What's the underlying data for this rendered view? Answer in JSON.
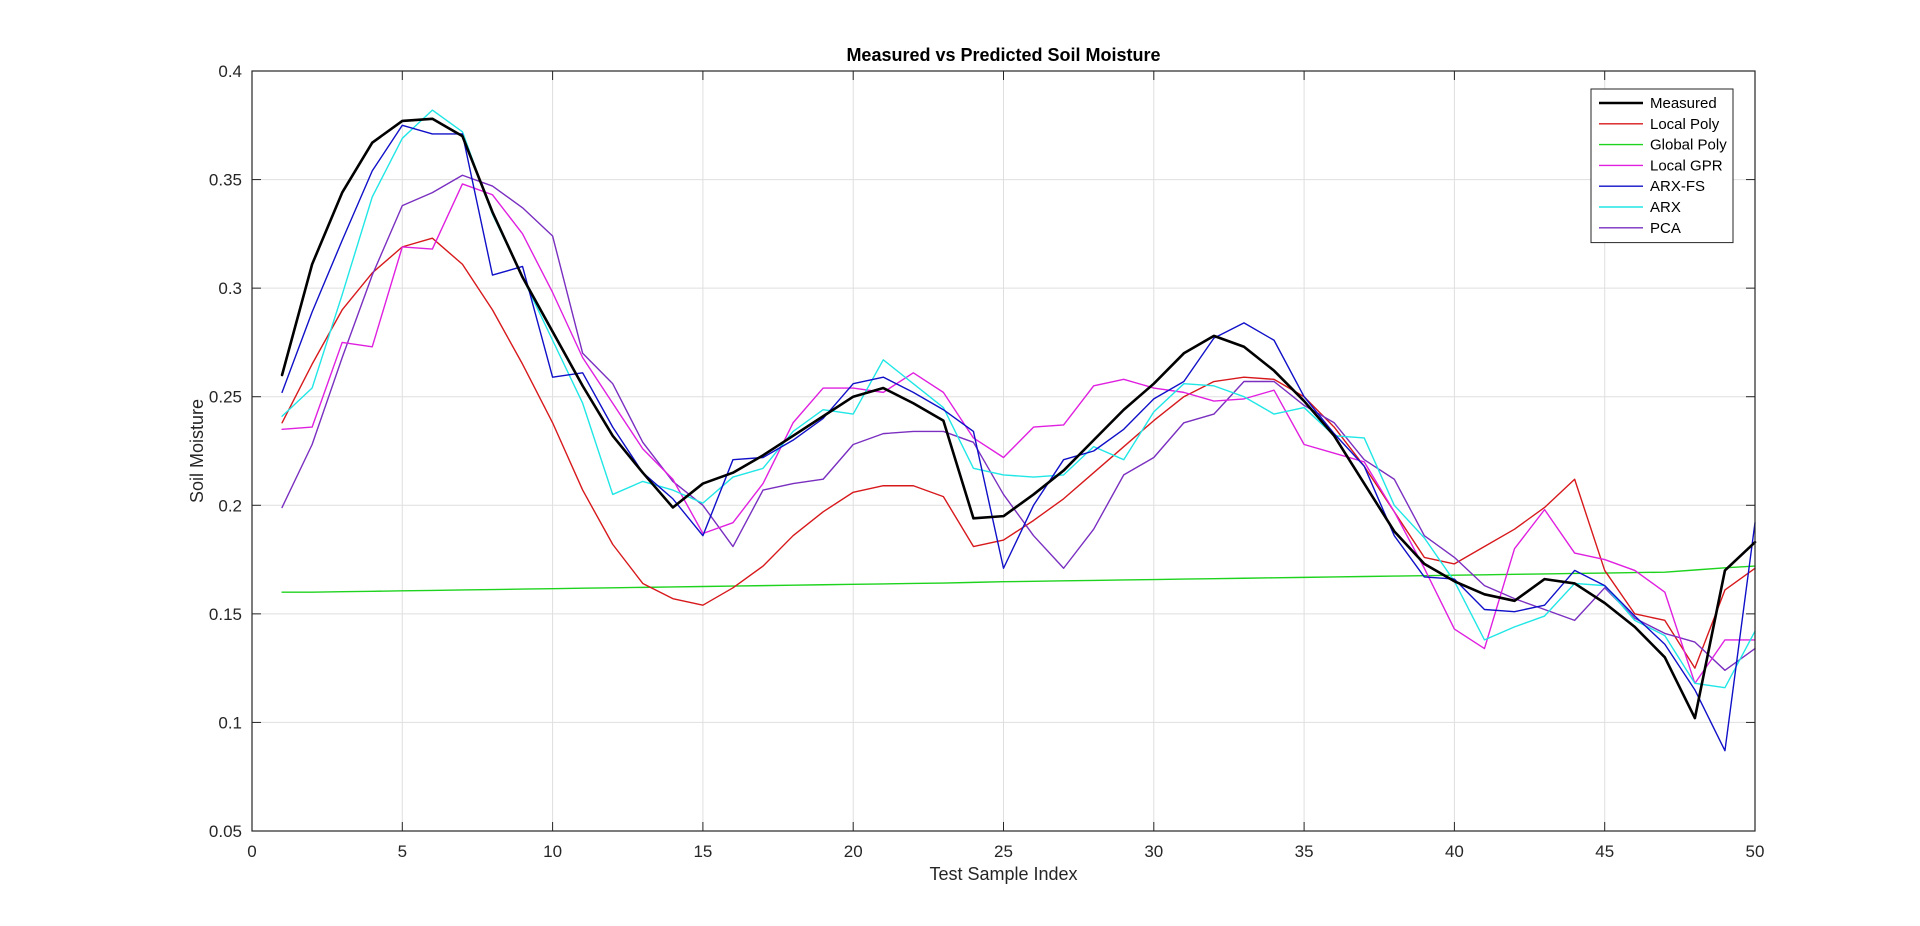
{
  "chart_data": {
    "type": "line",
    "title": "Measured vs Predicted Soil Moisture",
    "xlabel": "Test Sample Index",
    "ylabel": "Soil Moisture",
    "xlim": [
      0,
      50
    ],
    "ylim": [
      0.05,
      0.4
    ],
    "xticks": [
      0,
      5,
      10,
      15,
      20,
      25,
      30,
      35,
      40,
      45,
      50
    ],
    "yticks": [
      0.05,
      0.1,
      0.15,
      0.2,
      0.25,
      0.3,
      0.35,
      0.4
    ],
    "xtick_labels": [
      "0",
      "5",
      "10",
      "15",
      "20",
      "25",
      "30",
      "35",
      "40",
      "45",
      "50"
    ],
    "ytick_labels": [
      "0.05",
      "0.1",
      "0.15",
      "0.2",
      "0.25",
      "0.3",
      "0.35",
      "0.4"
    ],
    "grid": true,
    "legend_position": "top-right",
    "x": [
      1,
      2,
      3,
      4,
      5,
      6,
      7,
      8,
      9,
      10,
      11,
      12,
      13,
      14,
      15,
      16,
      17,
      18,
      19,
      20,
      21,
      22,
      23,
      24,
      25,
      26,
      27,
      28,
      29,
      30,
      31,
      32,
      33,
      34,
      35,
      36,
      37,
      38,
      39,
      40,
      41,
      42,
      43,
      44,
      45,
      46,
      47,
      48,
      49,
      50
    ],
    "series": [
      {
        "name": "Measured",
        "color": "#000000",
        "width": 2.6,
        "values": [
          0.26,
          0.311,
          0.344,
          0.367,
          0.377,
          0.378,
          0.37,
          0.335,
          0.305,
          0.28,
          0.255,
          0.232,
          0.215,
          0.199,
          0.21,
          0.215,
          0.223,
          0.232,
          0.241,
          0.25,
          0.254,
          0.247,
          0.239,
          0.194,
          0.195,
          0.205,
          0.216,
          0.23,
          0.244,
          0.256,
          0.27,
          0.278,
          0.273,
          0.262,
          0.248,
          0.232,
          0.21,
          0.188,
          0.173,
          0.165,
          0.159,
          0.156,
          0.166,
          0.164,
          0.155,
          0.144,
          0.13,
          0.102,
          0.17,
          0.183
        ]
      },
      {
        "name": "Local Poly",
        "color": "#d7191c",
        "width": 1.4,
        "values": [
          0.238,
          0.265,
          0.29,
          0.307,
          0.319,
          0.323,
          0.311,
          0.29,
          0.265,
          0.238,
          0.207,
          0.182,
          0.164,
          0.157,
          0.154,
          0.162,
          0.172,
          0.186,
          0.197,
          0.206,
          0.209,
          0.209,
          0.204,
          0.181,
          0.184,
          0.193,
          0.203,
          0.215,
          0.227,
          0.239,
          0.25,
          0.257,
          0.259,
          0.258,
          0.25,
          0.236,
          0.218,
          0.197,
          0.176,
          0.173,
          0.181,
          0.189,
          0.199,
          0.212,
          0.17,
          0.15,
          0.147,
          0.125,
          0.161,
          0.171
        ]
      },
      {
        "name": "Global Poly",
        "color": "#1ed31e",
        "width": 1.4,
        "values": [
          0.16,
          0.16,
          0.1602,
          0.1604,
          0.1606,
          0.1608,
          0.161,
          0.1612,
          0.1614,
          0.1616,
          0.1618,
          0.162,
          0.1622,
          0.1624,
          0.1626,
          0.1628,
          0.163,
          0.1632,
          0.1634,
          0.1636,
          0.1638,
          0.164,
          0.1642,
          0.1645,
          0.1648,
          0.165,
          0.1652,
          0.1654,
          0.1656,
          0.1658,
          0.166,
          0.1662,
          0.1664,
          0.1666,
          0.1668,
          0.167,
          0.1672,
          0.1674,
          0.1676,
          0.1678,
          0.168,
          0.1682,
          0.1684,
          0.1686,
          0.1688,
          0.169,
          0.1692,
          0.1702,
          0.1712,
          0.172
        ]
      },
      {
        "name": "Local GPR",
        "color": "#e020e0",
        "width": 1.4,
        "values": [
          0.235,
          0.236,
          0.275,
          0.273,
          0.319,
          0.318,
          0.348,
          0.343,
          0.325,
          0.298,
          0.268,
          0.247,
          0.226,
          0.212,
          0.187,
          0.192,
          0.21,
          0.238,
          0.254,
          0.254,
          0.252,
          0.261,
          0.252,
          0.231,
          0.222,
          0.236,
          0.237,
          0.255,
          0.258,
          0.254,
          0.252,
          0.248,
          0.249,
          0.253,
          0.228,
          0.224,
          0.22,
          0.197,
          0.171,
          0.143,
          0.134,
          0.18,
          0.198,
          0.178,
          0.175,
          0.17,
          0.16,
          0.118,
          0.138,
          0.138
        ]
      },
      {
        "name": "ARX-FS",
        "color": "#1010c8",
        "width": 1.4,
        "values": [
          0.252,
          0.289,
          0.322,
          0.354,
          0.375,
          0.371,
          0.371,
          0.306,
          0.31,
          0.259,
          0.261,
          0.236,
          0.215,
          0.203,
          0.186,
          0.221,
          0.222,
          0.23,
          0.24,
          0.256,
          0.259,
          0.252,
          0.244,
          0.234,
          0.171,
          0.2,
          0.221,
          0.225,
          0.235,
          0.249,
          0.257,
          0.277,
          0.284,
          0.276,
          0.25,
          0.233,
          0.218,
          0.186,
          0.167,
          0.166,
          0.152,
          0.151,
          0.154,
          0.17,
          0.163,
          0.149,
          0.136,
          0.115,
          0.087,
          0.192
        ]
      },
      {
        "name": "ARX",
        "color": "#20e6e6",
        "width": 1.4,
        "values": [
          0.241,
          0.254,
          0.297,
          0.342,
          0.369,
          0.382,
          0.372,
          0.334,
          0.305,
          0.276,
          0.247,
          0.205,
          0.211,
          0.207,
          0.201,
          0.213,
          0.217,
          0.234,
          0.244,
          0.242,
          0.267,
          0.256,
          0.245,
          0.217,
          0.214,
          0.213,
          0.214,
          0.227,
          0.221,
          0.243,
          0.256,
          0.255,
          0.25,
          0.242,
          0.245,
          0.232,
          0.231,
          0.2,
          0.185,
          0.165,
          0.138,
          0.144,
          0.149,
          0.164,
          0.163,
          0.147,
          0.14,
          0.118,
          0.116,
          0.142
        ]
      },
      {
        "name": "PCA",
        "color": "#7a2fc0",
        "width": 1.4,
        "values": [
          0.199,
          0.228,
          0.268,
          0.306,
          0.338,
          0.344,
          0.352,
          0.347,
          0.337,
          0.324,
          0.27,
          0.256,
          0.229,
          0.211,
          0.2,
          0.181,
          0.207,
          0.21,
          0.212,
          0.228,
          0.233,
          0.234,
          0.234,
          0.229,
          0.205,
          0.186,
          0.171,
          0.189,
          0.214,
          0.222,
          0.238,
          0.242,
          0.257,
          0.257,
          0.246,
          0.238,
          0.221,
          0.212,
          0.186,
          0.176,
          0.163,
          0.157,
          0.152,
          0.147,
          0.162,
          0.148,
          0.141,
          0.137,
          0.124,
          0.134
        ]
      }
    ]
  }
}
